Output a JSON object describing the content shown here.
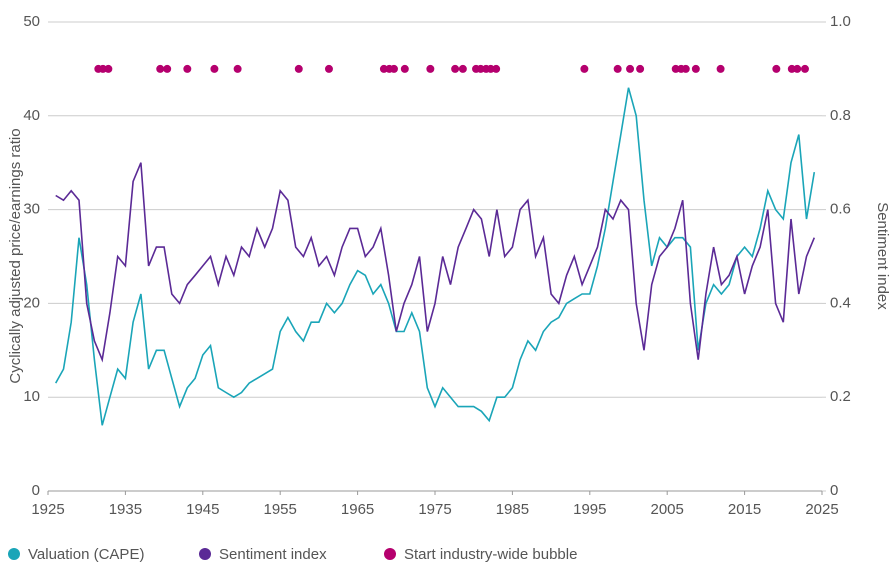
{
  "chart_data": {
    "type": "line",
    "y_label": "Cyclically adjusted price/earnings ratio",
    "y2_label": "Sentiment index",
    "xlim": [
      1925,
      2025
    ],
    "xticks": [
      1925,
      1935,
      1945,
      1955,
      1965,
      1975,
      1985,
      1995,
      2005,
      2015,
      2025
    ],
    "ylim": [
      0,
      50
    ],
    "yticks": [
      0,
      10,
      20,
      30,
      40,
      50
    ],
    "y2lim": [
      0,
      1
    ],
    "y2ticks": [
      0,
      {
        "value": 0.2,
        "label": "0.2"
      },
      {
        "value": 0.4,
        "label": "0.4"
      },
      {
        "value": 0.6,
        "label": "0.6"
      },
      {
        "value": 0.8,
        "label": "0.8"
      },
      {
        "value": 1,
        "label": "1.0"
      }
    ],
    "grid": true,
    "legend": "bottom-left",
    "series": [
      {
        "name": "Valuation (CAPE)",
        "color": "#1aa5b8",
        "kind": "line",
        "x": [
          1926,
          1927,
          1928,
          1929,
          1930,
          1931,
          1932,
          1933,
          1934,
          1935,
          1936,
          1937,
          1938,
          1939,
          1940,
          1941,
          1942,
          1943,
          1944,
          1945,
          1946,
          1947,
          1948,
          1949,
          1950,
          1951,
          1952,
          1953,
          1954,
          1955,
          1956,
          1957,
          1958,
          1959,
          1960,
          1961,
          1962,
          1963,
          1964,
          1965,
          1966,
          1967,
          1968,
          1969,
          1970,
          1971,
          1972,
          1973,
          1974,
          1975,
          1976,
          1977,
          1978,
          1979,
          1980,
          1981,
          1982,
          1983,
          1984,
          1985,
          1986,
          1987,
          1988,
          1989,
          1990,
          1991,
          1992,
          1993,
          1994,
          1995,
          1996,
          1997,
          1998,
          1999,
          2000,
          2001,
          2002,
          2003,
          2004,
          2005,
          2006,
          2007,
          2008,
          2009,
          2010,
          2011,
          2012,
          2013,
          2014,
          2015,
          2016,
          2017,
          2018,
          2019,
          2020,
          2021,
          2022,
          2023,
          2024
        ],
        "values": [
          11.5,
          13,
          18,
          27,
          22,
          14,
          7,
          10,
          13,
          12,
          18,
          21,
          13,
          15,
          15,
          12,
          9,
          11,
          12,
          14.5,
          15.5,
          11,
          10.5,
          10,
          10.5,
          11.5,
          12,
          12.5,
          13,
          17,
          18.5,
          17,
          16,
          18,
          18,
          20,
          19,
          20,
          22,
          23.5,
          23,
          21,
          22,
          20,
          17,
          17,
          19,
          17,
          11,
          9,
          11,
          10,
          9,
          9,
          9,
          8.5,
          7.5,
          10,
          10,
          11,
          14,
          16,
          15,
          17,
          18,
          18.5,
          20,
          20.5,
          21,
          21,
          24,
          28,
          33,
          38,
          43,
          40,
          31,
          24,
          27,
          26,
          27,
          27,
          26,
          15,
          20,
          22,
          21,
          22,
          25,
          26,
          25,
          28,
          32,
          30,
          29,
          35,
          38,
          29,
          34
        ]
      },
      {
        "name": "Sentiment index",
        "color": "#5b2a96",
        "kind": "line",
        "axis": "y2",
        "x": [
          1926,
          1927,
          1928,
          1929,
          1930,
          1931,
          1932,
          1933,
          1934,
          1935,
          1936,
          1937,
          1938,
          1939,
          1940,
          1941,
          1942,
          1943,
          1944,
          1945,
          1946,
          1947,
          1948,
          1949,
          1950,
          1951,
          1952,
          1953,
          1954,
          1955,
          1956,
          1957,
          1958,
          1959,
          1960,
          1961,
          1962,
          1963,
          1964,
          1965,
          1966,
          1967,
          1968,
          1969,
          1970,
          1971,
          1972,
          1973,
          1974,
          1975,
          1976,
          1977,
          1978,
          1979,
          1980,
          1981,
          1982,
          1983,
          1984,
          1985,
          1986,
          1987,
          1988,
          1989,
          1990,
          1991,
          1992,
          1993,
          1994,
          1995,
          1996,
          1997,
          1998,
          1999,
          2000,
          2001,
          2002,
          2003,
          2004,
          2005,
          2006,
          2007,
          2008,
          2009,
          2010,
          2011,
          2012,
          2013,
          2014,
          2015,
          2016,
          2017,
          2018,
          2019,
          2020,
          2021,
          2022,
          2023,
          2024
        ],
        "values": [
          0.63,
          0.62,
          0.64,
          0.62,
          0.4,
          0.32,
          0.28,
          0.38,
          0.5,
          0.48,
          0.66,
          0.7,
          0.48,
          0.52,
          0.52,
          0.42,
          0.4,
          0.44,
          0.46,
          0.48,
          0.5,
          0.44,
          0.5,
          0.46,
          0.52,
          0.5,
          0.56,
          0.52,
          0.56,
          0.64,
          0.62,
          0.52,
          0.5,
          0.54,
          0.48,
          0.5,
          0.46,
          0.52,
          0.56,
          0.56,
          0.5,
          0.52,
          0.56,
          0.46,
          0.34,
          0.4,
          0.44,
          0.5,
          0.34,
          0.4,
          0.5,
          0.44,
          0.52,
          0.56,
          0.6,
          0.58,
          0.5,
          0.6,
          0.5,
          0.52,
          0.6,
          0.62,
          0.5,
          0.54,
          0.42,
          0.4,
          0.46,
          0.5,
          0.44,
          0.48,
          0.52,
          0.6,
          0.58,
          0.62,
          0.6,
          0.4,
          0.3,
          0.44,
          0.5,
          0.52,
          0.56,
          0.62,
          0.4,
          0.28,
          0.42,
          0.52,
          0.44,
          0.46,
          0.5,
          0.42,
          0.48,
          0.52,
          0.6,
          0.4,
          0.36,
          0.58,
          0.42,
          0.5,
          0.54
        ]
      },
      {
        "name": "Start industry-wide bubble",
        "color": "#b5006e",
        "kind": "dots",
        "x": [
          1931.5,
          1932.1,
          1932.8,
          1939.5,
          1940.4,
          1943.0,
          1946.5,
          1949.5,
          1957.4,
          1961.3,
          1968.4,
          1969.1,
          1969.7,
          1971.1,
          1974.4,
          1977.6,
          1978.6,
          1980.3,
          1980.9,
          1981.6,
          1982.2,
          1982.9,
          1994.3,
          1998.6,
          2000.2,
          2001.5,
          2006.1,
          2006.8,
          2007.4,
          2008.7,
          2011.9,
          2019.1,
          2021.1,
          2021.8,
          2022.8
        ],
        "values": [
          45,
          45,
          45,
          45,
          45,
          45,
          45,
          45,
          45,
          45,
          45,
          45,
          45,
          45,
          45,
          45,
          45,
          45,
          45,
          45,
          45,
          45,
          45,
          45,
          45,
          45,
          45,
          45,
          45,
          45,
          45,
          45,
          45,
          45,
          45
        ]
      }
    ]
  }
}
